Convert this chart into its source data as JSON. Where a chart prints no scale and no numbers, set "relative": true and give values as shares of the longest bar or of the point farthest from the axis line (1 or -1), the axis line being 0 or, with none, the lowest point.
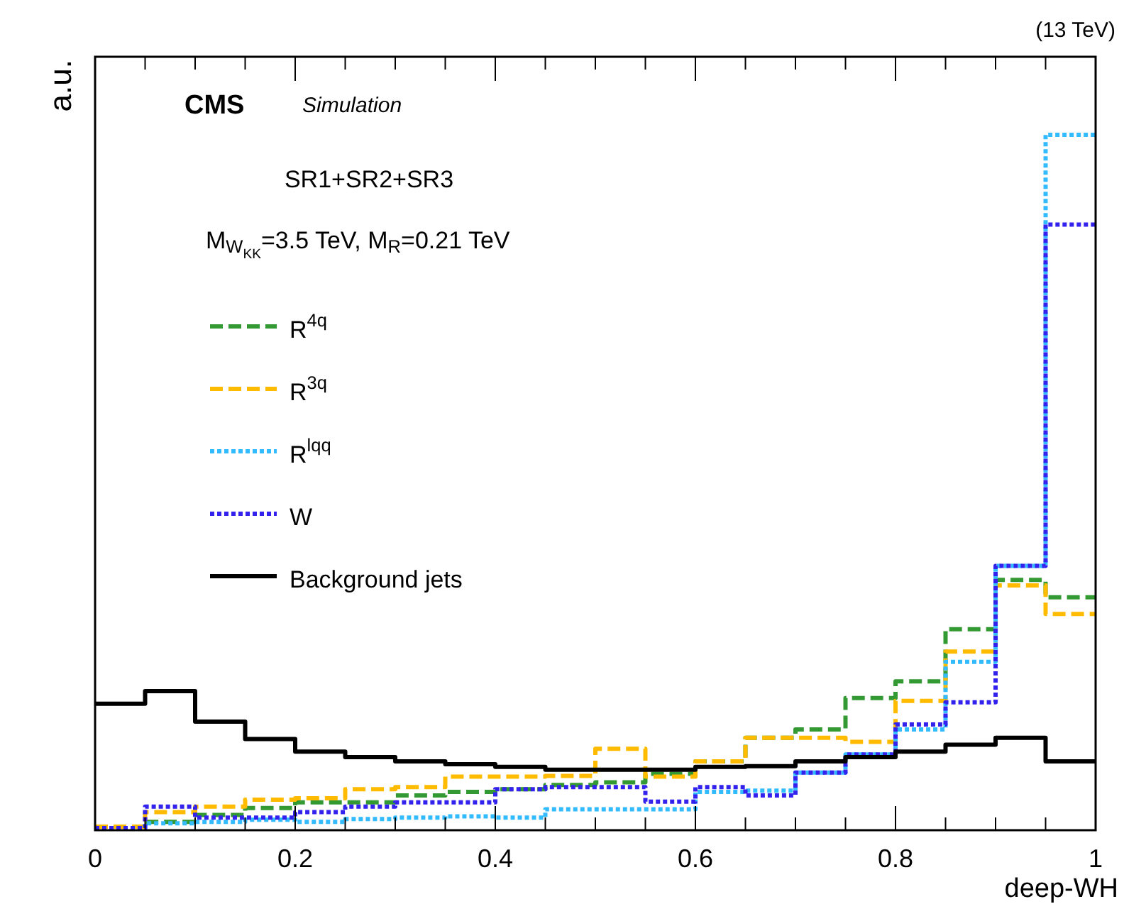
{
  "chart_data": {
    "type": "step",
    "title": "CMS",
    "subtitle": "Simulation",
    "xlabel": "deep-WH",
    "ylabel": "a.u.",
    "relative": true,
    "annotations": [
      "(13 TeV)",
      "SR1+SR2+SR3",
      "M$_{W}$$_{KK}$=3.5 TeV, M$_{R}$=0.21 TeV"
    ],
    "x": [
      0,
      0.05,
      0.1,
      0.15,
      0.2,
      0.25,
      0.3,
      0.35,
      0.4,
      0.45,
      0.5,
      0.55,
      0.6,
      0.65,
      0.7,
      0.75,
      0.8,
      0.85,
      0.9,
      0.95,
      1
    ],
    "xlim": [
      0,
      1
    ],
    "xticks": [
      {
        "value": 0,
        "label": "0"
      },
      {
        "value": 0.2,
        "label": "0.2"
      },
      {
        "value": 0.4,
        "label": "0.4"
      },
      {
        "value": 0.6,
        "label": "0.6"
      },
      {
        "value": 0.8,
        "label": "0.8"
      },
      {
        "value": 1,
        "label": "1"
      }
    ],
    "legend": "top left",
    "grid": false,
    "series": [
      {
        "name": "R$^{4q}$",
        "color": "#339933",
        "line_style": "dashed",
        "values": [
          0.005,
          0.012,
          0.022,
          0.032,
          0.04,
          0.04,
          0.05,
          0.055,
          0.059,
          0.065,
          0.069,
          0.081,
          0.099,
          0.133,
          0.145,
          0.19,
          0.214,
          0.289,
          0.36,
          0.335,
          0.335
        ]
      },
      {
        "name": "R$^{3q}$",
        "color": "#ffbb00",
        "line_style": "dashed",
        "values": [
          0.005,
          0.026,
          0.034,
          0.044,
          0.046,
          0.059,
          0.062,
          0.077,
          0.077,
          0.078,
          0.117,
          0.077,
          0.099,
          0.133,
          0.133,
          0.127,
          0.186,
          0.257,
          0.352,
          0.311,
          0.311
        ]
      },
      {
        "name": "R$^{lqq}$",
        "color": "#33bbff",
        "line_style": "dotted",
        "values": [
          0.003,
          0.01,
          0.012,
          0.015,
          0.012,
          0.016,
          0.018,
          0.02,
          0.018,
          0.03,
          0.03,
          0.03,
          0.055,
          0.057,
          0.083,
          0.109,
          0.145,
          0.242,
          0.38,
          1.0,
          1.0
        ]
      },
      {
        "name": "W",
        "color": "#3322ee",
        "line_style": "dotted",
        "values": [
          0.003,
          0.034,
          0.018,
          0.018,
          0.026,
          0.034,
          0.04,
          0.04,
          0.059,
          0.062,
          0.062,
          0.041,
          0.062,
          0.05,
          0.083,
          0.109,
          0.152,
          0.184,
          0.38,
          0.871,
          0.871
        ]
      },
      {
        "name": "Background jets",
        "color": "#000000",
        "line_style": "solid",
        "values": [
          0.182,
          0.2,
          0.156,
          0.131,
          0.113,
          0.105,
          0.099,
          0.095,
          0.091,
          0.087,
          0.087,
          0.087,
          0.091,
          0.092,
          0.099,
          0.105,
          0.113,
          0.123,
          0.133,
          0.099,
          0.099
        ]
      }
    ]
  }
}
